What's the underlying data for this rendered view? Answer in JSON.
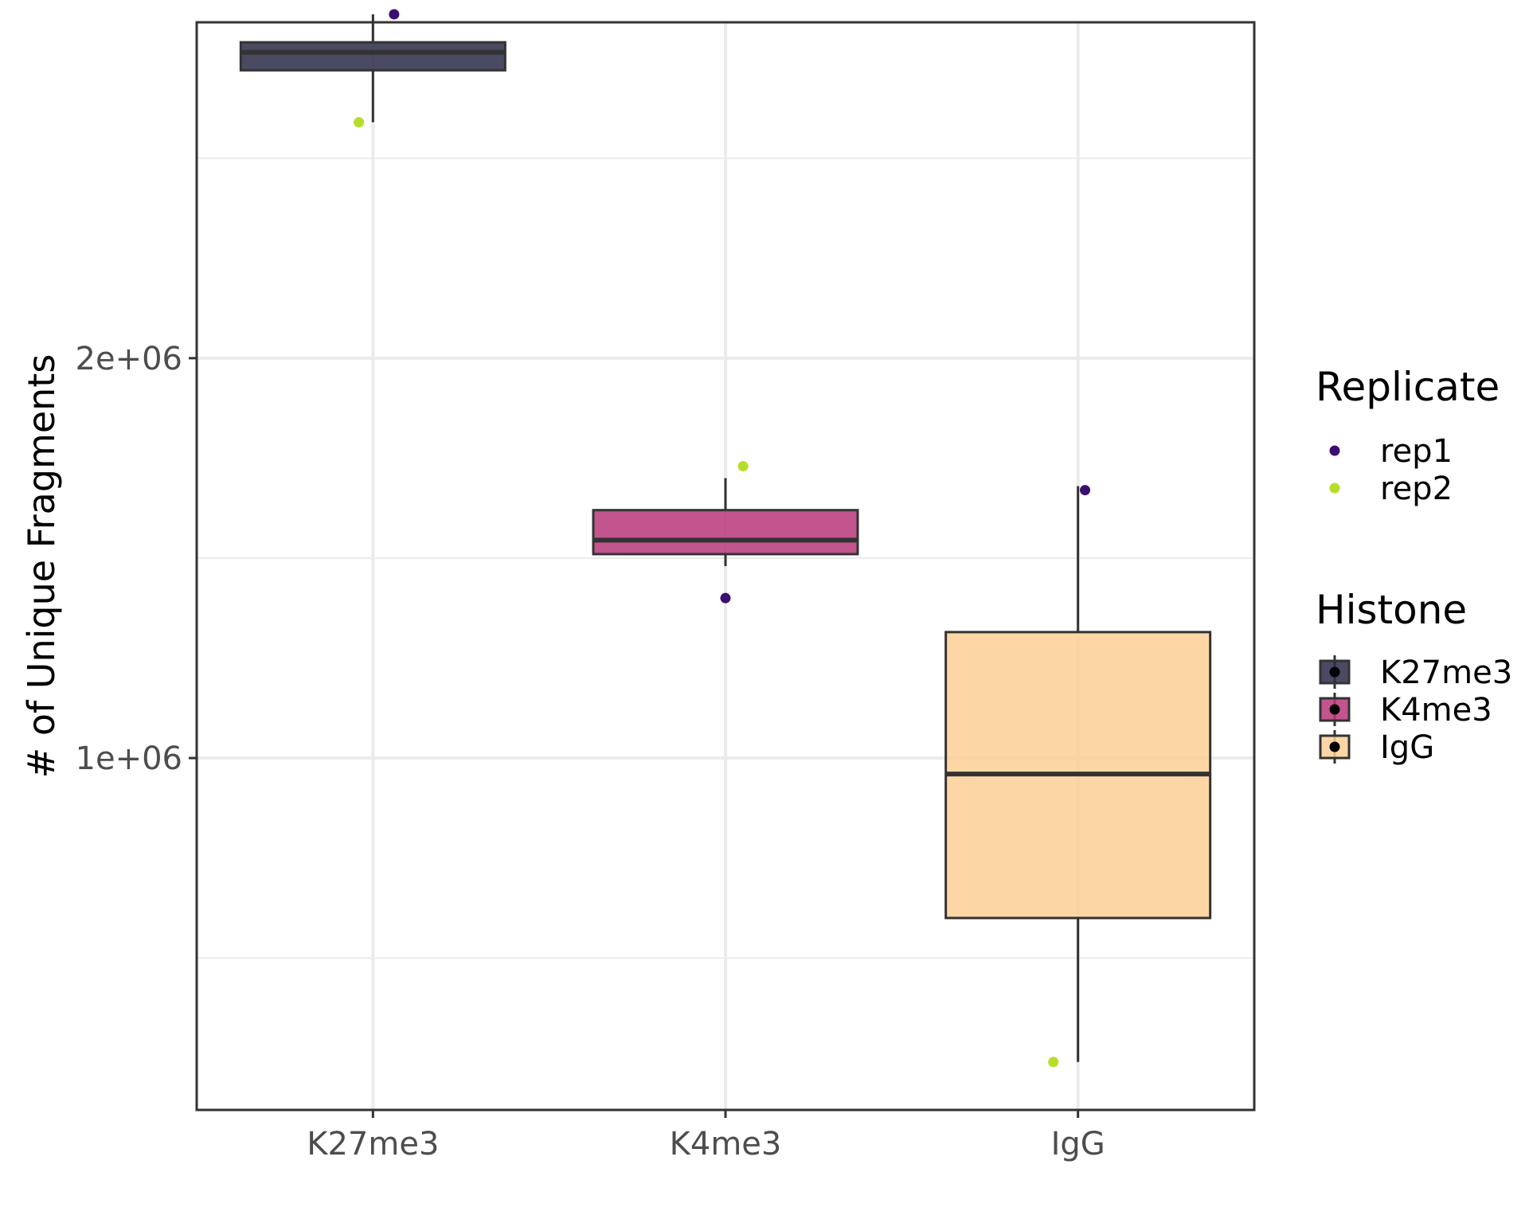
{
  "chart_data": {
    "type": "box",
    "title": "",
    "xlabel": "",
    "ylabel": "# of Unique Fragments",
    "ylim": [
      120000,
      2840000
    ],
    "y_ticks": [
      {
        "value": 1000000,
        "label": "1e+06"
      },
      {
        "value": 2000000,
        "label": "2e+06"
      }
    ],
    "y_minor_gridlines": [
      500000,
      1500000,
      2500000
    ],
    "grid": true,
    "categories": [
      "K27me3",
      "K4me3",
      "IgG"
    ],
    "boxes": [
      {
        "category": "K27me3",
        "fill": "#2b2a48",
        "lower_whisker": 2590000,
        "q1": 2720000,
        "median": 2765000,
        "q3": 2790000,
        "upper_whisker": 2860000
      },
      {
        "category": "K4me3",
        "fill": "#b73779",
        "lower_whisker": 1480000,
        "q1": 1510000,
        "median": 1545000,
        "q3": 1620000,
        "upper_whisker": 1700000
      },
      {
        "category": "IgG",
        "fill": "#fcd095",
        "lower_whisker": 240000,
        "q1": 600000,
        "median": 960000,
        "q3": 1315000,
        "upper_whisker": 1680000
      }
    ],
    "points": [
      {
        "category": "K27me3",
        "replicate": "rep1",
        "value": 2860000,
        "jitter": 0.06
      },
      {
        "category": "K27me3",
        "replicate": "rep2",
        "value": 2590000,
        "jitter": -0.04
      },
      {
        "category": "K4me3",
        "replicate": "rep1",
        "value": 1400000,
        "jitter": 0.0
      },
      {
        "category": "K4me3",
        "replicate": "rep2",
        "value": 1730000,
        "jitter": 0.05
      },
      {
        "category": "IgG",
        "replicate": "rep1",
        "value": 1670000,
        "jitter": 0.02
      },
      {
        "category": "IgG",
        "replicate": "rep2",
        "value": 240000,
        "jitter": -0.07
      }
    ],
    "legends": [
      {
        "title": "Replicate",
        "kind": "point",
        "entries": [
          {
            "label": "rep1",
            "color": "#3b0f70"
          },
          {
            "label": "rep2",
            "color": "#b5de2b"
          }
        ]
      },
      {
        "title": "Histone",
        "kind": "box",
        "entries": [
          {
            "label": "K27me3",
            "color": "#2b2a48"
          },
          {
            "label": "K4me3",
            "color": "#b73779"
          },
          {
            "label": "IgG",
            "color": "#fcd095"
          }
        ]
      }
    ],
    "legend_position": "right"
  }
}
